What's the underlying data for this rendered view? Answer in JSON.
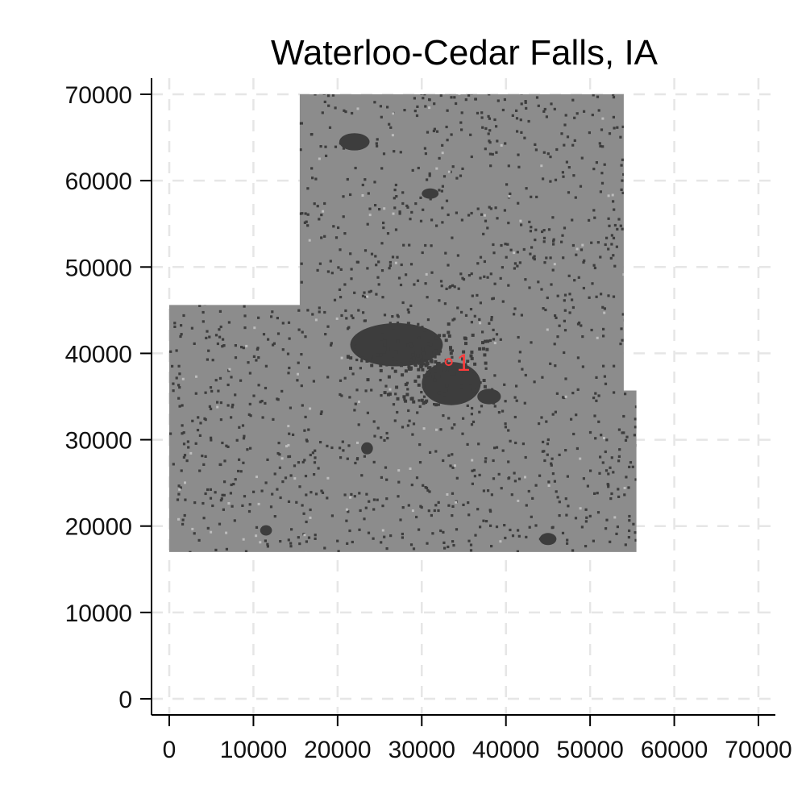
{
  "title": "Waterloo-Cedar Falls, IA",
  "chart_data": {
    "type": "map",
    "title": "Waterloo-Cedar Falls, IA",
    "xlim": [
      0,
      70000
    ],
    "ylim": [
      0,
      70000
    ],
    "x_ticks": [
      0,
      10000,
      20000,
      30000,
      40000,
      50000,
      60000,
      70000
    ],
    "y_ticks": [
      0,
      10000,
      20000,
      30000,
      40000,
      50000,
      60000,
      70000
    ],
    "x_tick_labels": [
      "0",
      "10000",
      "20000",
      "30000",
      "40000",
      "50000",
      "60000",
      "70000"
    ],
    "y_tick_labels": [
      "0",
      "10000",
      "20000",
      "30000",
      "40000",
      "50000",
      "60000",
      "70000"
    ],
    "grid": true,
    "region_outline": [
      [
        0,
        17000
      ],
      [
        55500,
        17000
      ],
      [
        55500,
        35700
      ],
      [
        54000,
        35700
      ],
      [
        54000,
        70000
      ],
      [
        15500,
        70000
      ],
      [
        15500,
        45600
      ],
      [
        0,
        45600
      ]
    ],
    "urban_clusters": [
      {
        "x": 27000,
        "y": 41000,
        "rx": 5500,
        "ry": 2500
      },
      {
        "x": 33500,
        "y": 36500,
        "rx": 3500,
        "ry": 2500
      },
      {
        "x": 22000,
        "y": 64500,
        "rx": 1800,
        "ry": 1000
      },
      {
        "x": 31000,
        "y": 58500,
        "rx": 1000,
        "ry": 600
      },
      {
        "x": 23500,
        "y": 29000,
        "rx": 700,
        "ry": 700
      },
      {
        "x": 11500,
        "y": 19500,
        "rx": 700,
        "ry": 600
      },
      {
        "x": 45000,
        "y": 18500,
        "rx": 1000,
        "ry": 700
      },
      {
        "x": 38000,
        "y": 35000,
        "rx": 1400,
        "ry": 900
      }
    ],
    "marker": {
      "x": 33200,
      "y": 39000,
      "label": "1",
      "color": "#ff3b3b"
    },
    "colors": {
      "region_fill": "#8c8c8c",
      "urban": "#3d3d3d",
      "grid": "#e6e6e6",
      "axis": "#000000"
    }
  }
}
